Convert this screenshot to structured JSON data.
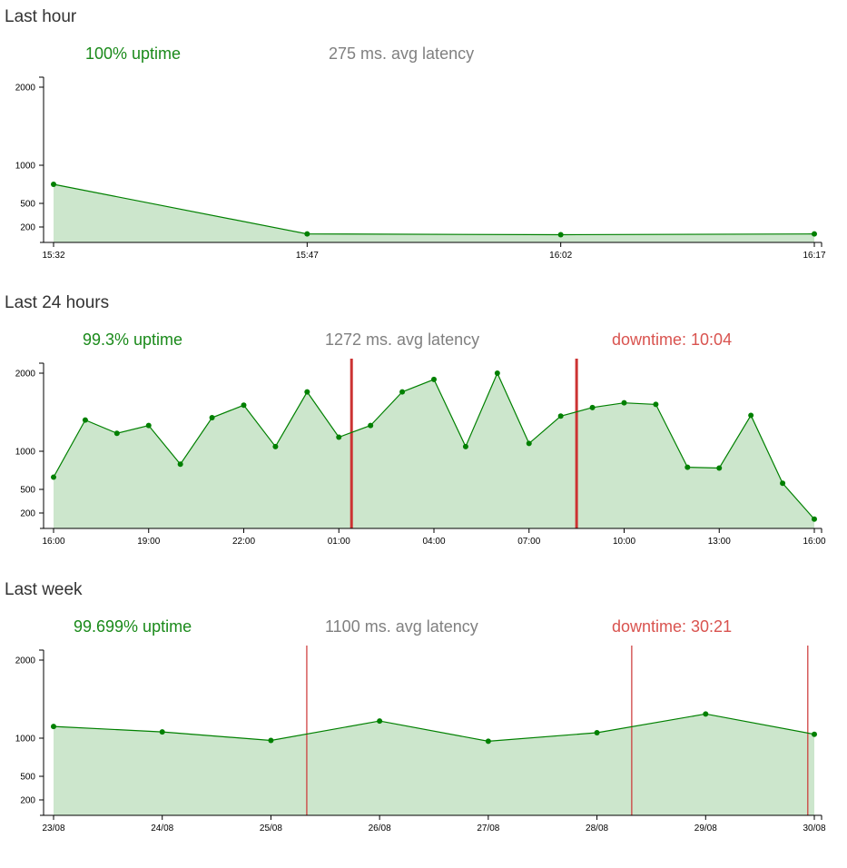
{
  "colors": {
    "area": "#cce6cc",
    "line": "#008000",
    "dot": "#008000",
    "down": "#cc3333",
    "uptime": "#1a8a1a",
    "latency": "#808080",
    "downtime": "#d9534f"
  },
  "sections": [
    {
      "title": "Last hour",
      "uptime": "100% uptime",
      "latency": "275 ms. avg latency",
      "downtime": "",
      "chart_data": {
        "type": "area",
        "y_ticks": [
          "2000",
          "1000",
          "500",
          "200"
        ],
        "y_tick_values": [
          2000,
          1000,
          500,
          200
        ],
        "x_ticks": [
          "15:32",
          "15:47",
          "16:02",
          "16:17"
        ],
        "x_tick_values": [
          0,
          15,
          30,
          45
        ],
        "x": [
          0,
          15,
          30,
          45
        ],
        "values": [
          750,
          110,
          100,
          110
        ],
        "downtime_lines": []
      }
    },
    {
      "title": "Last 24 hours",
      "uptime": "99.3% uptime",
      "latency": "1272 ms. avg latency",
      "downtime": "downtime: 10:04",
      "chart_data": {
        "type": "area",
        "y_ticks": [
          "2000",
          "1000",
          "500",
          "200"
        ],
        "y_tick_values": [
          2000,
          1000,
          500,
          200
        ],
        "x_ticks": [
          "16:00",
          "19:00",
          "22:00",
          "01:00",
          "04:00",
          "07:00",
          "10:00",
          "13:00",
          "16:00"
        ],
        "x_tick_values": [
          0,
          3,
          6,
          9,
          12,
          15,
          18,
          21,
          24
        ],
        "x": [
          0,
          1,
          2,
          3,
          4,
          5,
          6,
          7,
          8,
          9,
          10,
          11,
          12,
          13,
          14,
          15,
          16,
          17,
          18,
          19,
          20,
          21,
          22,
          23,
          24
        ],
        "values": [
          660,
          1400,
          1230,
          1330,
          830,
          1430,
          1590,
          1060,
          1760,
          1180,
          1330,
          1760,
          1920,
          1060,
          2000,
          1100,
          1450,
          1560,
          1620,
          1600,
          790,
          780,
          1460,
          580,
          120
        ],
        "downtime_lines": [
          9.4,
          16.5
        ]
      }
    },
    {
      "title": "Last week",
      "uptime": "99.699% uptime",
      "latency": "1100 ms. avg latency",
      "downtime": "downtime: 30:21",
      "chart_data": {
        "type": "area",
        "y_ticks": [
          "2000",
          "1000",
          "500",
          "200"
        ],
        "y_tick_values": [
          2000,
          1000,
          500,
          200
        ],
        "x_ticks": [
          "23/08",
          "24/08",
          "25/08",
          "26/08",
          "27/08",
          "28/08",
          "29/08",
          "30/08"
        ],
        "x_tick_values": [
          0,
          1,
          2,
          3,
          4,
          5,
          6,
          7
        ],
        "x": [
          0,
          1,
          2,
          3,
          4,
          5,
          6,
          7
        ],
        "values": [
          1150,
          1080,
          970,
          1220,
          960,
          1070,
          1310,
          1050
        ],
        "downtime_lines": [
          2.33,
          5.32,
          6.94
        ]
      }
    }
  ]
}
